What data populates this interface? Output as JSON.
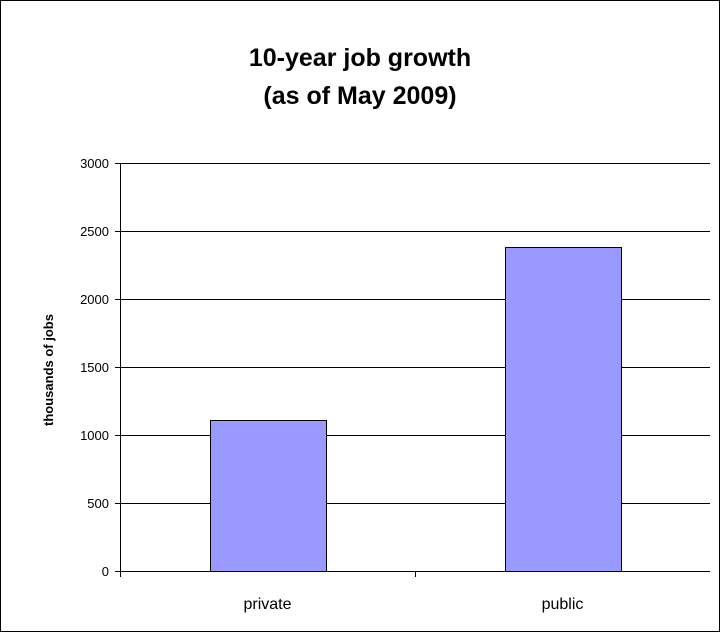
{
  "chart_data": {
    "type": "bar",
    "title_lines": [
      "10-year job growth",
      "(as of May 2009)"
    ],
    "categories": [
      "private",
      "public"
    ],
    "values": [
      1110,
      2385
    ],
    "xlabel": "",
    "ylabel": "thousands of jobs",
    "ylim": [
      0,
      3000
    ],
    "yticks": [
      0,
      500,
      1000,
      1500,
      2000,
      2500,
      3000
    ],
    "bar_color": "#9999ff",
    "grid": true,
    "legend": "none"
  }
}
